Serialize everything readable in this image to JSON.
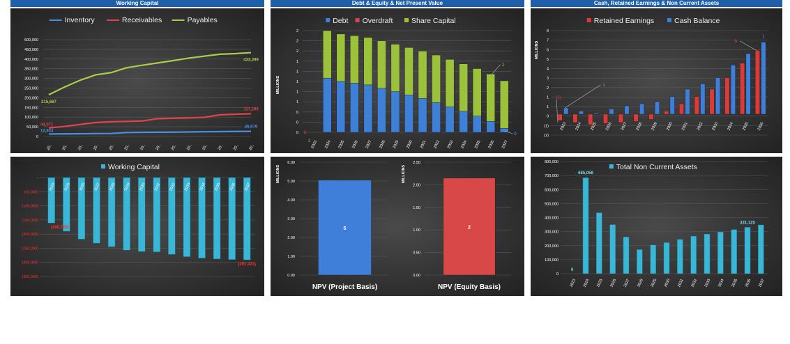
{
  "headers": [
    "Working Capital",
    "Debt & Equity & Net Present Value",
    "Cash, Retained Earnings & Non Current Assets"
  ],
  "colors": {
    "inventory": "#4a90e2",
    "receivables": "#e0444a",
    "payables": "#a8cc4c",
    "debt": "#3e7fd8",
    "overdraft": "#e0404a",
    "share_capital": "#9cc23c",
    "retained": "#d93b3b",
    "cash": "#3f7fd9",
    "teal": "#3ab7d6",
    "npv_project": "#3f7fd9",
    "npv_equity": "#d94848"
  },
  "chart_data": [
    {
      "id": "wc-lines",
      "type": "line",
      "categories": [
        "20..",
        "20..",
        "20..",
        "20..",
        "20..",
        "20..",
        "20..",
        "20..",
        "20..",
        "20..",
        "20..",
        "20..",
        "20..",
        "20.."
      ],
      "series": [
        {
          "name": "Inventory",
          "values": [
            12833,
            13500,
            14200,
            15000,
            15500,
            20500,
            21500,
            22000,
            22500,
            23500,
            24500,
            25200,
            26000,
            26678
          ]
        },
        {
          "name": "Receivables",
          "values": [
            44071,
            52000,
            62000,
            72000,
            76000,
            78000,
            80000,
            92000,
            94000,
            96000,
            99000,
            112000,
            115000,
            117299
          ]
        },
        {
          "name": "Payables",
          "values": [
            215667,
            255000,
            290000,
            318000,
            330000,
            355000,
            368000,
            380000,
            392000,
            405000,
            415000,
            425000,
            428000,
            433299
          ]
        }
      ],
      "data_labels": [
        {
          "text": "12,833",
          "series": 0,
          "index": 0,
          "pos": "left"
        },
        {
          "text": "44,071",
          "series": 1,
          "index": 0,
          "pos": "left"
        },
        {
          "text": "215,667",
          "series": 2,
          "index": 0,
          "pos": "below"
        },
        {
          "text": "26,678",
          "series": 0,
          "index": 13,
          "pos": "above"
        },
        {
          "text": "117,299",
          "series": 1,
          "index": 13,
          "pos": "above"
        },
        {
          "text": "433,299",
          "series": 2,
          "index": 13,
          "pos": "below"
        }
      ],
      "yticks": [
        "0",
        "50,000",
        "100,000",
        "150,000",
        "200,000",
        "250,000",
        "300,000",
        "350,000",
        "400,000",
        "450,000",
        "500,000"
      ],
      "ylim": [
        0,
        500000
      ],
      "legend": "top"
    },
    {
      "id": "debt-equity",
      "type": "bar",
      "stacked": true,
      "ylabel": "MILLIONS",
      "categories": [
        "2023",
        "2024",
        "2025",
        "2026",
        "2027",
        "2028",
        "2029",
        "2030",
        "2031",
        "2032",
        "2033",
        "2034",
        "2035",
        "2036",
        "2037"
      ],
      "series": [
        {
          "name": "Debt",
          "values": [
            0,
            1.6,
            1.5,
            1.45,
            1.4,
            1.3,
            1.2,
            1.1,
            1.0,
            0.88,
            0.75,
            0.62,
            0.48,
            0.32,
            0.12
          ]
        },
        {
          "name": "Overdraft",
          "values": [
            0,
            0,
            0,
            0,
            0,
            0,
            0,
            0,
            0,
            0,
            0,
            0,
            0,
            0,
            0
          ]
        },
        {
          "name": "Share Capital",
          "values": [
            0,
            1.4,
            1.4,
            1.4,
            1.4,
            1.4,
            1.4,
            1.4,
            1.4,
            1.4,
            1.4,
            1.4,
            1.4,
            1.4,
            1.4
          ]
        }
      ],
      "yticks": [
        "0",
        "0",
        "0",
        "1",
        "1",
        "1",
        "1",
        "1",
        "2",
        "2",
        "2"
      ],
      "ylim": [
        0,
        3.0
      ],
      "data_labels": [
        {
          "text": "0",
          "color": "#e0404a"
        },
        {
          "text": "2",
          "color": "#9cc23c"
        },
        {
          "text": "1",
          "color": "#cddc39"
        },
        {
          "text": "0",
          "color": "#5aa0e6"
        }
      ],
      "legend": "top"
    },
    {
      "id": "cash-retained",
      "type": "bar",
      "ylabel": "MILLIONS",
      "categories": [
        "2023",
        "2024",
        "2025",
        "2026",
        "2027",
        "2028",
        "2029",
        "2030",
        "2031",
        "2032",
        "2033",
        "2034",
        "2035",
        "2036"
      ],
      "series": [
        {
          "name": "Retained Earnings",
          "values": [
            -0.6,
            -0.8,
            -1.0,
            -0.9,
            -0.8,
            -0.7,
            -0.5,
            0.3,
            1.0,
            1.7,
            2.4,
            3.5,
            4.9,
            6.1
          ]
        },
        {
          "name": "Cash Balance",
          "values": [
            0.6,
            0.3,
            0.1,
            0.5,
            0.8,
            1.0,
            1.2,
            1.7,
            2.4,
            2.9,
            3.5,
            4.7,
            5.8,
            6.9
          ]
        }
      ],
      "yticks": [
        "(2)",
        "(1)",
        "0",
        "1",
        "1",
        "2",
        "3",
        "4",
        "5",
        "6",
        "7",
        "8"
      ],
      "ylim": [
        -2,
        8
      ],
      "data_labels": [
        {
          "text": "(1)",
          "color": "#e0404a"
        },
        {
          "text": "1",
          "color": "#5aa0e6"
        },
        {
          "text": "6",
          "color": "#e0404a"
        },
        {
          "text": "7",
          "color": "#5aa0e6"
        }
      ],
      "legend": "top"
    },
    {
      "id": "wc-bars",
      "type": "bar",
      "categories": [
        "2024",
        "2025",
        "2026",
        "2027",
        "2028",
        "2029",
        "2030",
        "2031",
        "2032",
        "2033",
        "2034",
        "2035",
        "2036",
        "2037"
      ],
      "series": [
        {
          "name": "Working Capital",
          "values": [
            -160763,
            -190000,
            -218000,
            -232000,
            -245000,
            -257000,
            -262000,
            -263000,
            -272000,
            -280000,
            -285000,
            -288000,
            -290000,
            -291322
          ]
        }
      ],
      "yticks": [
        "-",
        "(50,000)",
        "(100,000)",
        "(150,000)",
        "(200,000)",
        "(250,000)",
        "(300,000)",
        "(350,000)"
      ],
      "ylim": [
        -350000,
        0
      ],
      "data_labels": [
        {
          "text": "(160,763)",
          "index": 0
        },
        {
          "text": "(291,322)",
          "index": 13
        }
      ],
      "legend": "top"
    },
    {
      "id": "npv-project",
      "type": "bar",
      "ylabel": "MILLIONS",
      "categories": [
        "NPV (Project Basis)"
      ],
      "values": [
        5.05
      ],
      "value_label": "5",
      "yticks": [
        "0.00",
        "1.00",
        "2.00",
        "3.00",
        "4.00",
        "5.00",
        "6.00"
      ],
      "ylim": [
        0,
        6
      ]
    },
    {
      "id": "npv-equity",
      "type": "bar",
      "ylabel": "MILLIONS",
      "categories": [
        "NPV (Equity Basis)"
      ],
      "values": [
        2.15
      ],
      "value_label": "2",
      "yticks": [
        "0.00",
        "0.50",
        "1.00",
        "1.50",
        "2.00",
        "2.50"
      ],
      "ylim": [
        0,
        2.5
      ]
    },
    {
      "id": "nca",
      "type": "bar",
      "categories": [
        "2023",
        "2024",
        "2025",
        "2026",
        "2027",
        "2028",
        "2029",
        "2030",
        "2031",
        "2032",
        "2033",
        "2034",
        "2035",
        "2036",
        "2037"
      ],
      "series": [
        {
          "name": "Total Non Current Assets",
          "values": [
            0,
            685058,
            435000,
            350000,
            262000,
            172000,
            205000,
            222000,
            245000,
            268000,
            283000,
            298000,
            315000,
            331125,
            348000
          ]
        }
      ],
      "yticks": [
        "0",
        "100,000",
        "200,000",
        "300,000",
        "400,000",
        "500,000",
        "600,000",
        "700,000",
        "800,000"
      ],
      "ylim": [
        0,
        800000
      ],
      "data_labels": [
        {
          "text": "0",
          "index": 0
        },
        {
          "text": "685,058",
          "index": 1
        },
        {
          "text": "331,125",
          "index": 13
        }
      ],
      "legend": "top"
    }
  ]
}
